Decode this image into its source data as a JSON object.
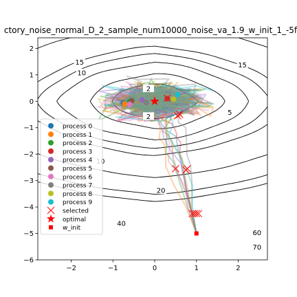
{
  "chart_data": {
    "type": "line",
    "title": "ctory_noise_normal_D_2_sample_num10000_noise_va_1.9_w_init_1_-5f_",
    "xlim": [
      -2.8,
      2.7
    ],
    "ylim": [
      -6,
      2.4
    ],
    "xticks": [
      -2,
      -1,
      0,
      1,
      2
    ],
    "yticks": [
      -6,
      -5,
      -4,
      -3,
      -2,
      -1,
      0,
      1,
      2
    ],
    "contour_levels": [
      {
        "value": 2,
        "label": "2"
      },
      {
        "value": 5,
        "label": "5"
      },
      {
        "value": 10,
        "label": "10"
      },
      {
        "value": 15,
        "label": "15"
      },
      {
        "value": 20,
        "label": "20"
      },
      {
        "value": 40,
        "label": "40"
      },
      {
        "value": 60,
        "label": "60"
      },
      {
        "value": 70,
        "label": "70"
      }
    ],
    "contour_label_positions": [
      {
        "label": "15",
        "x": -1.8,
        "y": 1.45
      },
      {
        "label": "15",
        "x": 2.1,
        "y": 1.35
      },
      {
        "label": "10",
        "x": -1.75,
        "y": 1.05
      },
      {
        "label": "2",
        "x": -0.15,
        "y": 0.45
      },
      {
        "label": "2",
        "x": -0.15,
        "y": -0.6
      },
      {
        "label": "5",
        "x": 1.8,
        "y": -0.45
      },
      {
        "label": "10",
        "x": -1.3,
        "y": -2.3
      },
      {
        "label": "20",
        "x": 0.15,
        "y": -3.4
      },
      {
        "label": "40",
        "x": -0.8,
        "y": -4.65
      },
      {
        "label": "60",
        "x": 2.45,
        "y": -5.0
      },
      {
        "label": "70",
        "x": 2.45,
        "y": -5.55
      }
    ],
    "series": [
      {
        "name": "process 0",
        "color": "#1f77b4",
        "final": [
          -0.75,
          -0.07
        ]
      },
      {
        "name": "process 1",
        "color": "#ff7f0e",
        "final": [
          -0.72,
          -0.1
        ]
      },
      {
        "name": "process 2",
        "color": "#2ca02c",
        "final": [
          -0.6,
          0.0
        ]
      },
      {
        "name": "process 3",
        "color": "#d62728",
        "final": [
          0.3,
          0.1
        ]
      },
      {
        "name": "process 4",
        "color": "#9467bd",
        "final": [
          -0.3,
          0.05
        ]
      },
      {
        "name": "process 5",
        "color": "#8c564b",
        "final": [
          -0.55,
          0.02
        ]
      },
      {
        "name": "process 6",
        "color": "#e377c2",
        "final": [
          -0.6,
          -0.12
        ]
      },
      {
        "name": "process 7",
        "color": "#7f7f7f",
        "final": [
          -0.2,
          -0.05
        ]
      },
      {
        "name": "process 8",
        "color": "#bcbd22",
        "final": [
          0.45,
          0.08
        ]
      },
      {
        "name": "process 9",
        "color": "#17becf",
        "final": [
          0.55,
          0.25
        ]
      }
    ],
    "selected": [
      [
        0.3,
        0.12
      ],
      [
        0.55,
        -0.55
      ],
      [
        0.6,
        -0.5
      ],
      [
        0.5,
        -2.55
      ],
      [
        0.75,
        -2.6
      ],
      [
        0.78,
        -2.55
      ],
      [
        0.9,
        -4.25
      ],
      [
        0.95,
        -4.25
      ],
      [
        1.0,
        -4.25
      ],
      [
        1.05,
        -4.25
      ]
    ],
    "optimal": [
      0,
      0
    ],
    "w_init": [
      1,
      -5
    ],
    "legend": [
      {
        "label": "process 0",
        "marker": "dot",
        "color": "#1f77b4"
      },
      {
        "label": "process 1",
        "marker": "dot",
        "color": "#ff7f0e"
      },
      {
        "label": "process 2",
        "marker": "dot",
        "color": "#2ca02c"
      },
      {
        "label": "process 3",
        "marker": "dot",
        "color": "#d62728"
      },
      {
        "label": "process 4",
        "marker": "dot",
        "color": "#9467bd"
      },
      {
        "label": "process 5",
        "marker": "dot",
        "color": "#8c564b"
      },
      {
        "label": "process 6",
        "marker": "dot",
        "color": "#e377c2"
      },
      {
        "label": "process 7",
        "marker": "dot",
        "color": "#7f7f7f"
      },
      {
        "label": "process 8",
        "marker": "dot",
        "color": "#bcbd22"
      },
      {
        "label": "process 9",
        "marker": "dot",
        "color": "#17becf"
      },
      {
        "label": "selected",
        "marker": "x",
        "color": "#ff0000"
      },
      {
        "label": "optimal",
        "marker": "star",
        "color": "#ff0000"
      },
      {
        "label": "w_init",
        "marker": "square",
        "color": "#ff0000"
      }
    ]
  }
}
